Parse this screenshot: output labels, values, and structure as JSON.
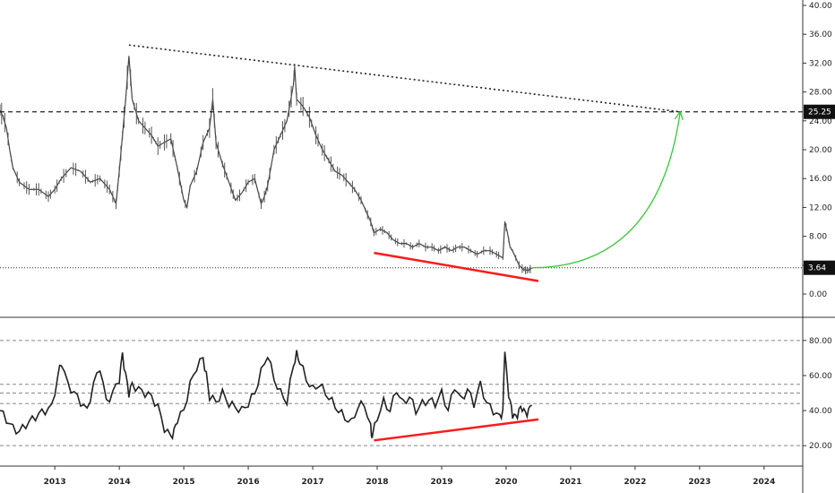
{
  "chart_data": [
    {
      "type": "line",
      "panel": "price",
      "scale": "linear",
      "y_ticks": [
        "40.00",
        "36.00",
        "32.00",
        "28.00",
        "24.00",
        "20.00",
        "16.00",
        "12.00",
        "8.00",
        "4.00",
        "0.00"
      ],
      "ylim": [
        0,
        40
      ],
      "x_ticks": [
        "2013",
        "2014",
        "2015",
        "2016",
        "2017",
        "2018",
        "2019",
        "2020",
        "2021",
        "2022",
        "2023",
        "2024"
      ],
      "xlim": [
        2012.15,
        2024.6
      ],
      "current_price": "3.64",
      "target_price": "25.25",
      "series": [
        {
          "x": [
            2012.15,
            2012.2,
            2012.25,
            2012.3,
            2012.35,
            2012.45,
            2012.6,
            2012.75,
            2012.9,
            2013.0,
            2013.1,
            2013.25,
            2013.4,
            2013.55,
            2013.7,
            2013.85,
            2013.9,
            2013.95,
            2014.0,
            2014.05,
            2014.1,
            2014.15,
            2014.2,
            2014.3,
            2014.4,
            2014.5,
            2014.6,
            2014.7,
            2014.8,
            2014.9,
            2015.0,
            2015.05,
            2015.1,
            2015.2,
            2015.3,
            2015.4,
            2015.45,
            2015.5,
            2015.6,
            2015.7,
            2015.8,
            2015.9,
            2016.0,
            2016.1,
            2016.2,
            2016.25,
            2016.3,
            2016.4,
            2016.5,
            2016.6,
            2016.7,
            2016.72,
            2016.75,
            2016.85,
            2016.95,
            2017.05,
            2017.15,
            2017.25,
            2017.35,
            2017.45,
            2017.55,
            2017.65,
            2017.75,
            2017.85,
            2017.9,
            2017.95,
            2018.05,
            2018.15,
            2018.25,
            2018.35,
            2018.45,
            2018.55,
            2018.65,
            2018.75,
            2018.85,
            2018.95,
            2019.05,
            2019.15,
            2019.25,
            2019.35,
            2019.45,
            2019.55,
            2019.65,
            2019.75,
            2019.85,
            2019.95,
            2019.98,
            2020.02,
            2020.06,
            2020.1,
            2020.15,
            2020.2,
            2020.25,
            2020.3,
            2020.35,
            2020.4
          ],
          "y": [
            25.5,
            24.5,
            23.0,
            20.0,
            17.5,
            15.5,
            14.5,
            14.5,
            13.5,
            14.5,
            16.0,
            17.5,
            17.0,
            15.5,
            16.0,
            14.5,
            13.5,
            12.5,
            17.0,
            22.0,
            27.0,
            33.0,
            27.0,
            24.0,
            23.0,
            22.0,
            20.5,
            21.0,
            21.5,
            17.5,
            13.0,
            12.0,
            15.0,
            17.0,
            21.0,
            23.0,
            27.0,
            21.0,
            18.0,
            15.5,
            13.0,
            14.0,
            15.5,
            16.0,
            12.5,
            13.5,
            15.0,
            20.0,
            22.0,
            24.0,
            29.0,
            31.5,
            27.0,
            26.0,
            24.5,
            22.0,
            20.0,
            18.5,
            17.0,
            16.5,
            15.5,
            14.5,
            13.0,
            11.0,
            10.0,
            8.5,
            9.0,
            8.5,
            7.5,
            7.0,
            7.0,
            6.5,
            7.0,
            6.5,
            6.5,
            6.0,
            6.5,
            6.0,
            6.5,
            6.5,
            6.0,
            5.5,
            6.0,
            6.0,
            5.5,
            5.0,
            10.0,
            8.5,
            6.5,
            6.0,
            5.0,
            4.0,
            3.5,
            3.3,
            3.3,
            3.6
          ]
        }
      ],
      "annotations": [
        {
          "type": "dotted-line",
          "from": [
            2014.15,
            34.5
          ],
          "to": [
            2022.7,
            25.25
          ]
        },
        {
          "type": "dashed-line",
          "y": 25.25
        },
        {
          "type": "dotted-line",
          "y": 3.64
        },
        {
          "type": "line",
          "color": "#ff1a1a",
          "from": [
            2017.95,
            5.7
          ],
          "to": [
            2020.5,
            1.8
          ]
        },
        {
          "type": "arrow-curve",
          "color": "#33cc33",
          "from": [
            2020.4,
            3.64
          ],
          "to": [
            2022.7,
            25.25
          ]
        }
      ]
    },
    {
      "type": "line",
      "panel": "oscillator",
      "scale": "linear",
      "y_ticks": [
        "80.00",
        "60.00",
        "40.00",
        "20.00"
      ],
      "ylim": [
        16,
        84
      ],
      "reference_lines": [
        80,
        55,
        50,
        44,
        20
      ],
      "xlim": [
        2012.15,
        2024.6
      ],
      "series": [
        {
          "x": [
            2012.15,
            2012.25,
            2012.35,
            2012.45,
            2012.55,
            2012.65,
            2012.75,
            2012.85,
            2012.95,
            2013.05,
            2013.1,
            2013.2,
            2013.3,
            2013.4,
            2013.5,
            2013.6,
            2013.7,
            2013.8,
            2013.9,
            2014.0,
            2014.05,
            2014.1,
            2014.15,
            2014.2,
            2014.3,
            2014.4,
            2014.5,
            2014.6,
            2014.7,
            2014.8,
            2014.85,
            2014.9,
            2015.0,
            2015.1,
            2015.2,
            2015.3,
            2015.35,
            2015.4,
            2015.5,
            2015.6,
            2015.7,
            2015.8,
            2015.9,
            2016.0,
            2016.1,
            2016.2,
            2016.3,
            2016.4,
            2016.5,
            2016.6,
            2016.7,
            2016.75,
            2016.8,
            2016.9,
            2017.0,
            2017.1,
            2017.2,
            2017.3,
            2017.4,
            2017.5,
            2017.6,
            2017.7,
            2017.8,
            2017.9,
            2017.92,
            2018.0,
            2018.1,
            2018.2,
            2018.3,
            2018.4,
            2018.5,
            2018.6,
            2018.7,
            2018.8,
            2018.9,
            2019.0,
            2019.1,
            2019.2,
            2019.3,
            2019.4,
            2019.5,
            2019.6,
            2019.7,
            2019.8,
            2019.9,
            2019.95,
            2019.98,
            2020.02,
            2020.06,
            2020.1,
            2020.15,
            2020.2,
            2020.25,
            2020.3,
            2020.35,
            2020.4
          ],
          "y": [
            40,
            35,
            30,
            28,
            32,
            35,
            38,
            40,
            42,
            60,
            68,
            55,
            50,
            45,
            40,
            55,
            65,
            45,
            50,
            58,
            72,
            60,
            50,
            55,
            52,
            50,
            48,
            42,
            30,
            25,
            28,
            35,
            40,
            55,
            65,
            70,
            60,
            48,
            45,
            50,
            44,
            42,
            40,
            44,
            50,
            62,
            72,
            58,
            50,
            45,
            66,
            72,
            68,
            58,
            52,
            55,
            50,
            45,
            40,
            36,
            33,
            42,
            44,
            30,
            25,
            36,
            45,
            40,
            52,
            44,
            48,
            40,
            44,
            46,
            44,
            50,
            40,
            54,
            46,
            52,
            44,
            55,
            44,
            40,
            36,
            40,
            76,
            55,
            45,
            38,
            36,
            40,
            42,
            38,
            40,
            43
          ]
        }
      ],
      "annotations": [
        {
          "type": "line",
          "color": "#ff1a1a",
          "from": [
            2017.95,
            23
          ],
          "to": [
            2020.5,
            35
          ]
        }
      ]
    }
  ]
}
